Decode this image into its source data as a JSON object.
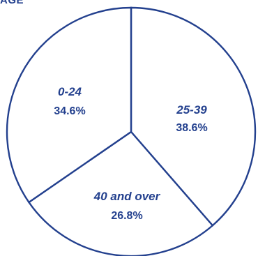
{
  "chart_data": {
    "type": "pie",
    "title": "AGE",
    "categories": [
      "0-24",
      "25-39",
      "40 and over"
    ],
    "values": [
      34.6,
      38.6,
      26.8
    ],
    "value_labels": [
      "34.6%",
      "38.6%",
      "26.8%"
    ],
    "colors": {
      "stroke": "#23408e",
      "fill": "#ffffff",
      "text": "#23408e"
    }
  }
}
